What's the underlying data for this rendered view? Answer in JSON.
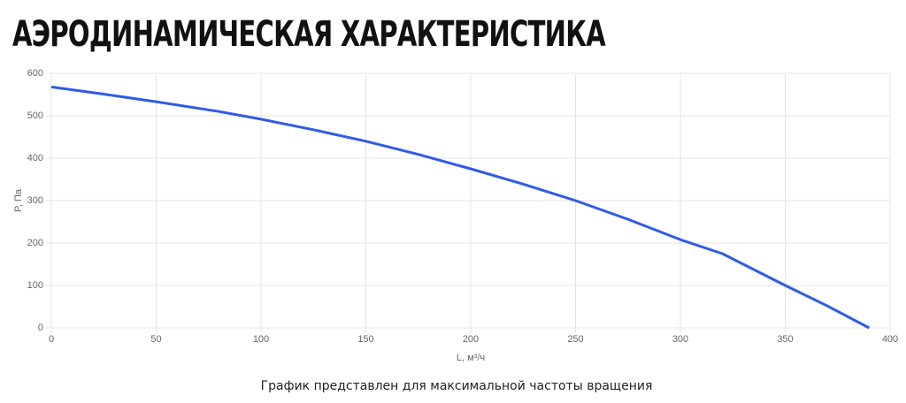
{
  "chart_data": {
    "type": "line",
    "title": "АЭРОДИНАМИЧЕСКАЯ ХАРАКТЕРИСТИКА",
    "x_label": "L, м³/ч",
    "y_label": "P, Па",
    "note": "График представлен для максимальной частоты вращения",
    "x": [
      0,
      25,
      50,
      80,
      100,
      125,
      150,
      175,
      200,
      225,
      250,
      275,
      300,
      320,
      350,
      370,
      390
    ],
    "series": [
      {
        "name": "P",
        "color": "#2f5be8",
        "values": [
          568,
          551,
          533,
          510,
          492,
          467,
          440,
          409,
          375,
          339,
          300,
          256,
          208,
          175,
          100,
          52,
          0
        ]
      }
    ],
    "xlim": [
      0,
      400
    ],
    "xticks": [
      0,
      50,
      100,
      150,
      200,
      250,
      300,
      350,
      400
    ],
    "ylim": [
      0,
      600
    ],
    "yticks": [
      0,
      100,
      200,
      300,
      400,
      500,
      600
    ],
    "grid": true
  }
}
